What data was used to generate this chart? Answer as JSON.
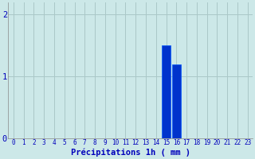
{
  "hours": [
    0,
    1,
    2,
    3,
    4,
    5,
    6,
    7,
    8,
    9,
    10,
    11,
    12,
    13,
    14,
    15,
    16,
    17,
    18,
    19,
    20,
    21,
    22,
    23
  ],
  "values": [
    0,
    0,
    0,
    0,
    0,
    0,
    0,
    0,
    0,
    0,
    0,
    0,
    0,
    0,
    0,
    1.5,
    1.2,
    0,
    0,
    0,
    0,
    0,
    0,
    0
  ],
  "bar_color": "#0033cc",
  "bar_edge_color": "#0055ff",
  "background_color": "#cce8e8",
  "grid_color": "#aac8c8",
  "text_color": "#0000bb",
  "xlabel": "Précipitations 1h ( mm )",
  "ylim": [
    0,
    2.2
  ],
  "yticks": [
    0,
    1,
    2
  ],
  "tick_fontsize": 5.5,
  "label_fontsize": 7.5
}
